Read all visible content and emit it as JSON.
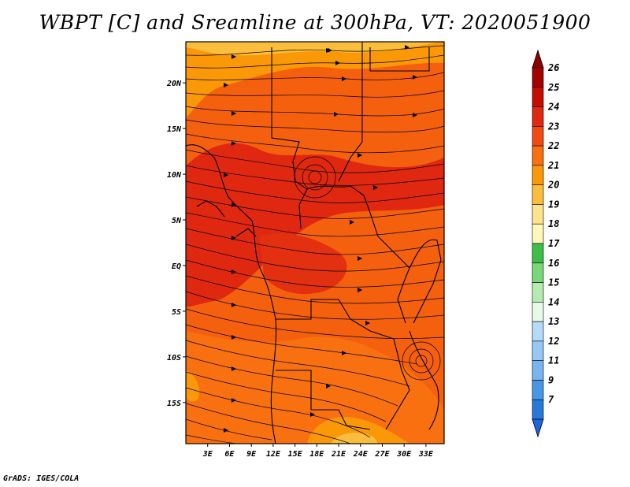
{
  "title": "WBPT [C] and Sreamline at 300hPa, VT: 2020051900",
  "footer": "GrADS: IGES/COLA",
  "map": {
    "lon_range": [
      0,
      35.5
    ],
    "lat_range": [
      -19.5,
      24.5
    ],
    "x_ticks": [
      {
        "lon": 3,
        "label": "3E"
      },
      {
        "lon": 6,
        "label": "6E"
      },
      {
        "lon": 9,
        "label": "9E"
      },
      {
        "lon": 12,
        "label": "12E"
      },
      {
        "lon": 15,
        "label": "15E"
      },
      {
        "lon": 18,
        "label": "18E"
      },
      {
        "lon": 21,
        "label": "21E"
      },
      {
        "lon": 24,
        "label": "24E"
      },
      {
        "lon": 27,
        "label": "27E"
      },
      {
        "lon": 30,
        "label": "30E"
      },
      {
        "lon": 33,
        "label": "33E"
      }
    ],
    "y_ticks": [
      {
        "lat": 20,
        "label": "20N"
      },
      {
        "lat": 15,
        "label": "15N"
      },
      {
        "lat": 10,
        "label": "10N"
      },
      {
        "lat": 5,
        "label": "5N"
      },
      {
        "lat": 0,
        "label": "EQ"
      },
      {
        "lat": -5,
        "label": "5S"
      },
      {
        "lat": -10,
        "label": "10S"
      },
      {
        "lat": -15,
        "label": "15S"
      }
    ]
  },
  "colorbar": {
    "levels": [
      {
        "label": "26",
        "color": "#a50000"
      },
      {
        "label": "25",
        "color": "#c40c00"
      },
      {
        "label": "24",
        "color": "#e02810"
      },
      {
        "label": "23",
        "color": "#f04a10"
      },
      {
        "label": "22",
        "color": "#f87010"
      },
      {
        "label": "21",
        "color": "#fa9808"
      },
      {
        "label": "20",
        "color": "#fbbe3c"
      },
      {
        "label": "19",
        "color": "#fee38c"
      },
      {
        "label": "18",
        "color": "#fff6b8"
      },
      {
        "label": "17",
        "color": "#3cbe48"
      },
      {
        "label": "16",
        "color": "#78d878"
      },
      {
        "label": "15",
        "color": "#b4ecb0"
      },
      {
        "label": "14",
        "color": "#e6fae6"
      },
      {
        "label": "13",
        "color": "#b4dcfa"
      },
      {
        "label": "12",
        "color": "#96c8f5"
      },
      {
        "label": "11",
        "color": "#78b4f0"
      },
      {
        "label": "9",
        "color": "#4896e6"
      },
      {
        "label": "7",
        "color": "#2878dc"
      }
    ],
    "top_arrow_color": "#8c0000",
    "bottom_arrow_color": "#1e64dc"
  }
}
